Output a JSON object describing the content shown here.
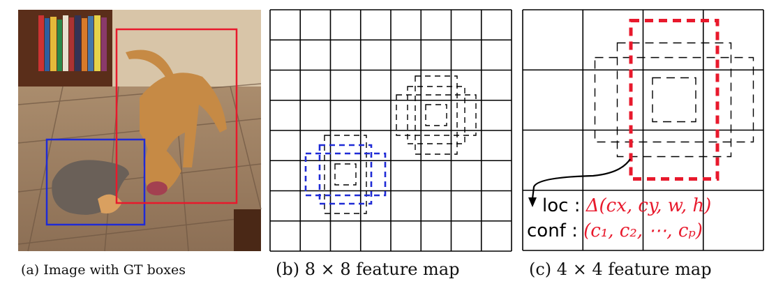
{
  "panels": [
    {
      "caption": "(a) Image with GT boxes",
      "gt_box_colors": {
        "cat": "#1f2bd6",
        "dog": "#e8192c"
      }
    },
    {
      "caption": "(b) 8 × 8 feature map",
      "grid": 8,
      "matched_box_color": "#1f2bd6"
    },
    {
      "caption": "(c) 4 × 4 feature map",
      "grid": 4,
      "matched_box_color": "#e8192c"
    }
  ],
  "prediction": {
    "loc_label": "loc :",
    "loc_value": "Δ(cx, cy, w, h)",
    "conf_label": "conf :",
    "conf_value": "(c₁, c₂, ⋯, cₚ)"
  }
}
